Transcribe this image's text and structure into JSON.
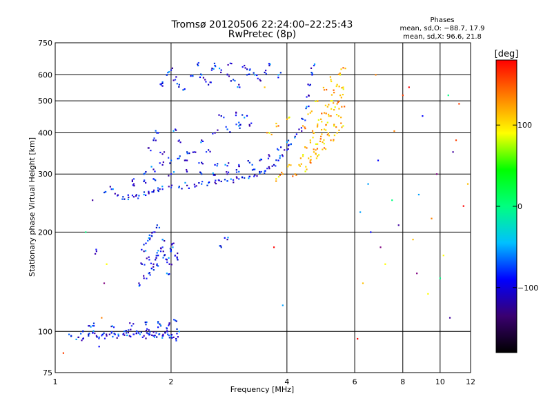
{
  "chart_data": {
    "type": "scatter",
    "title": "Tromsø 20120506 22:24:00–22:25:43",
    "subtitle": "RwPretec (8p)",
    "xlabel": "Frequency [MHz]",
    "ylabel": "Stationary phase Virtual Height [km]",
    "x_scale": "log",
    "y_scale": "log",
    "xlim": [
      1,
      12
    ],
    "ylim": [
      75,
      750
    ],
    "x_ticks": [
      "1",
      "2",
      "4",
      "6",
      "8",
      "10",
      "12"
    ],
    "y_ticks": [
      "75",
      "100",
      "200",
      "300",
      "400",
      "500",
      "600",
      "750"
    ],
    "grid": true,
    "stats": {
      "heading": "Phases",
      "o_line": "mean, sd,O: −88.7, 17.9",
      "x_line": "mean, sd,X: 96.6, 21.8"
    },
    "colorbar": {
      "label": "[deg]",
      "range": [
        -180,
        180
      ],
      "ticks": [
        "100",
        "0",
        "−100"
      ],
      "tick_values": [
        100,
        0,
        -100
      ],
      "colormap": [
        "#000000",
        "#3a0070",
        "#0000ff",
        "#00c0ff",
        "#00ff80",
        "#00ff00",
        "#ffff00",
        "#ff8000",
        "#ff0000"
      ]
    },
    "series": [
      {
        "points": [
          [
            1.1,
            97
          ],
          [
            1.15,
            96
          ],
          [
            1.18,
            95
          ],
          [
            1.22,
            97
          ],
          [
            1.25,
            99
          ],
          [
            1.28,
            97
          ],
          [
            1.3,
            96
          ],
          [
            1.33,
            98
          ],
          [
            1.36,
            97
          ],
          [
            1.4,
            99
          ],
          [
            1.43,
            98
          ],
          [
            1.46,
            97
          ],
          [
            1.5,
            98
          ],
          [
            1.53,
            99
          ],
          [
            1.56,
            97
          ],
          [
            1.6,
            98
          ],
          [
            1.63,
            100
          ],
          [
            1.66,
            98
          ],
          [
            1.7,
            97
          ],
          [
            1.73,
            99
          ],
          [
            1.76,
            98
          ],
          [
            1.8,
            97
          ],
          [
            1.83,
            99
          ],
          [
            1.86,
            98
          ],
          [
            1.9,
            97
          ],
          [
            1.93,
            99
          ],
          [
            1.96,
            98
          ],
          [
            2.0,
            97
          ],
          [
            2.03,
            96
          ],
          [
            2.06,
            95
          ],
          [
            1.26,
            104
          ],
          [
            1.42,
            103
          ],
          [
            1.58,
            104
          ],
          [
            1.72,
            105
          ],
          [
            1.88,
            104
          ],
          [
            1.98,
            106
          ],
          [
            2.05,
            108
          ],
          [
            2.1,
            100
          ],
          [
            1.75,
            101
          ],
          [
            1.95,
            102
          ],
          [
            1.18,
            100
          ],
          [
            1.22,
            104
          ],
          [
            1.55,
            101
          ],
          [
            1.85,
            107
          ],
          [
            1.65,
            140
          ],
          [
            1.7,
            145
          ],
          [
            1.75,
            150
          ],
          [
            1.78,
            155
          ],
          [
            1.8,
            160
          ],
          [
            1.82,
            165
          ],
          [
            1.85,
            170
          ],
          [
            1.88,
            175
          ],
          [
            1.9,
            180
          ],
          [
            1.92,
            170
          ],
          [
            1.95,
            165
          ],
          [
            1.98,
            160
          ],
          [
            2.0,
            175
          ],
          [
            2.02,
            180
          ],
          [
            2.05,
            170
          ],
          [
            2.08,
            165
          ],
          [
            1.72,
            185
          ],
          [
            1.76,
            190
          ],
          [
            1.8,
            200
          ],
          [
            1.84,
            210
          ],
          [
            1.7,
            175
          ],
          [
            1.75,
            168
          ],
          [
            1.85,
            158
          ],
          [
            1.95,
            150
          ],
          [
            2.03,
            185
          ],
          [
            1.68,
            160
          ],
          [
            1.78,
            195
          ],
          [
            1.9,
            190
          ],
          [
            1.45,
            258
          ],
          [
            1.5,
            256
          ],
          [
            1.55,
            255
          ],
          [
            1.6,
            256
          ],
          [
            1.65,
            258
          ],
          [
            1.7,
            260
          ],
          [
            1.75,
            262
          ],
          [
            1.8,
            265
          ],
          [
            1.85,
            268
          ],
          [
            1.9,
            270
          ],
          [
            2.0,
            273
          ],
          [
            2.1,
            275
          ],
          [
            2.2,
            277
          ],
          [
            2.3,
            279
          ],
          [
            2.4,
            280
          ],
          [
            2.5,
            282
          ],
          [
            2.6,
            283
          ],
          [
            2.7,
            285
          ],
          [
            2.8,
            286
          ],
          [
            2.9,
            288
          ],
          [
            3.0,
            290
          ],
          [
            3.1,
            292
          ],
          [
            3.2,
            295
          ],
          [
            3.3,
            298
          ],
          [
            3.4,
            302
          ],
          [
            3.5,
            306
          ],
          [
            3.6,
            312
          ],
          [
            3.7,
            320
          ],
          [
            3.8,
            330
          ],
          [
            3.9,
            340
          ],
          [
            4.0,
            355
          ],
          [
            4.1,
            370
          ],
          [
            4.2,
            390
          ],
          [
            4.3,
            410
          ],
          [
            4.4,
            440
          ],
          [
            4.5,
            480
          ],
          [
            4.55,
            520
          ],
          [
            4.6,
            560
          ],
          [
            4.65,
            600
          ],
          [
            4.7,
            640
          ],
          [
            1.6,
            290
          ],
          [
            1.7,
            300
          ],
          [
            1.8,
            310
          ],
          [
            1.9,
            320
          ],
          [
            2.0,
            330
          ],
          [
            2.1,
            335
          ],
          [
            2.2,
            330
          ],
          [
            2.4,
            325
          ],
          [
            2.6,
            320
          ],
          [
            2.8,
            318
          ],
          [
            3.0,
            320
          ],
          [
            3.2,
            325
          ],
          [
            3.4,
            330
          ],
          [
            3.6,
            340
          ],
          [
            3.8,
            355
          ],
          [
            4.0,
            375
          ],
          [
            1.6,
            280
          ],
          [
            1.7,
            285
          ],
          [
            1.8,
            290
          ],
          [
            2.0,
            300
          ],
          [
            2.2,
            305
          ],
          [
            2.4,
            300
          ],
          [
            2.6,
            298
          ],
          [
            2.8,
            300
          ],
          [
            3.0,
            305
          ],
          [
            3.3,
            310
          ],
          [
            1.75,
            360
          ],
          [
            1.8,
            380
          ],
          [
            1.85,
            400
          ],
          [
            2.05,
            410
          ],
          [
            2.1,
            380
          ],
          [
            2.2,
            350
          ],
          [
            2.4,
            380
          ],
          [
            2.6,
            400
          ],
          [
            2.8,
            410
          ],
          [
            3.0,
            420
          ],
          [
            1.9,
            345
          ],
          [
            2.5,
            355
          ],
          [
            1.95,
            600
          ],
          [
            2.0,
            620
          ],
          [
            2.05,
            580
          ],
          [
            2.1,
            560
          ],
          [
            2.15,
            540
          ],
          [
            1.9,
            555
          ],
          [
            2.35,
            640
          ],
          [
            2.4,
            600
          ],
          [
            2.45,
            580
          ],
          [
            2.5,
            560
          ],
          [
            2.6,
            640
          ],
          [
            2.7,
            620
          ],
          [
            2.8,
            600
          ],
          [
            2.9,
            580
          ],
          [
            3.0,
            560
          ],
          [
            3.1,
            640
          ],
          [
            3.2,
            620
          ],
          [
            3.3,
            600
          ],
          [
            3.4,
            580
          ],
          [
            3.5,
            610
          ],
          [
            2.25,
            595
          ],
          [
            2.55,
            620
          ],
          [
            2.85,
            650
          ],
          [
            3.15,
            600
          ],
          [
            3.6,
            640
          ],
          [
            2.95,
            460
          ],
          [
            3.0,
            430
          ],
          [
            3.1,
            445
          ],
          [
            3.2,
            420
          ],
          [
            2.7,
            450
          ],
          [
            1.35,
            265
          ],
          [
            1.4,
            270
          ],
          [
            2.3,
            350
          ],
          [
            2.7,
            180
          ],
          [
            2.8,
            190
          ],
          [
            1.28,
            175
          ],
          [
            1.9,
            570
          ],
          [
            3.8,
            600
          ]
        ],
        "colors": "blue-purple"
      },
      {
        "points": [
          [
            4.2,
            300
          ],
          [
            4.3,
            320
          ],
          [
            4.4,
            340
          ],
          [
            4.5,
            360
          ],
          [
            4.6,
            380
          ],
          [
            4.7,
            400
          ],
          [
            4.8,
            420
          ],
          [
            4.9,
            440
          ],
          [
            5.0,
            460
          ],
          [
            5.1,
            480
          ],
          [
            5.2,
            500
          ],
          [
            5.3,
            530
          ],
          [
            5.4,
            560
          ],
          [
            5.5,
            600
          ],
          [
            5.6,
            630
          ],
          [
            4.5,
            310
          ],
          [
            4.6,
            330
          ],
          [
            4.7,
            350
          ],
          [
            4.8,
            370
          ],
          [
            4.9,
            390
          ],
          [
            5.0,
            410
          ],
          [
            5.1,
            430
          ],
          [
            5.2,
            450
          ],
          [
            5.3,
            470
          ],
          [
            5.4,
            490
          ],
          [
            5.5,
            520
          ],
          [
            5.6,
            550
          ],
          [
            5.2,
            380
          ],
          [
            5.4,
            400
          ],
          [
            5.6,
            420
          ],
          [
            5.0,
            360
          ],
          [
            4.8,
            340
          ],
          [
            4.4,
            420
          ],
          [
            4.6,
            460
          ],
          [
            4.8,
            500
          ],
          [
            5.0,
            540
          ],
          [
            5.2,
            580
          ],
          [
            3.6,
            400
          ],
          [
            3.8,
            420
          ],
          [
            4.0,
            440
          ],
          [
            3.9,
            300
          ],
          [
            4.05,
            320
          ],
          [
            3.75,
            290
          ],
          [
            5.55,
            480
          ],
          [
            5.45,
            450
          ],
          [
            5.3,
            420
          ],
          [
            5.1,
            395
          ],
          [
            4.95,
            375
          ],
          [
            4.75,
            355
          ],
          [
            4.55,
            335
          ]
        ],
        "colors": "yellow-orange"
      },
      {
        "points": [
          [
            6.1,
            95
          ],
          [
            6.3,
            140
          ],
          [
            6.5,
            280
          ],
          [
            6.6,
            200
          ],
          [
            6.8,
            600
          ],
          [
            7.0,
            180
          ],
          [
            7.2,
            160
          ],
          [
            7.5,
            250
          ],
          [
            7.8,
            210
          ],
          [
            8.0,
            520
          ],
          [
            8.3,
            550
          ],
          [
            8.5,
            190
          ],
          [
            8.8,
            260
          ],
          [
            9.0,
            450
          ],
          [
            9.5,
            220
          ],
          [
            9.8,
            300
          ],
          [
            10.2,
            170
          ],
          [
            10.5,
            520
          ],
          [
            10.8,
            350
          ],
          [
            11.2,
            490
          ],
          [
            11.5,
            240
          ],
          [
            11.8,
            280
          ],
          [
            6.2,
            230
          ],
          [
            6.9,
            330
          ],
          [
            7.6,
            405
          ],
          [
            8.7,
            150
          ],
          [
            9.3,
            130
          ],
          [
            10.0,
            145
          ],
          [
            10.6,
            110
          ],
          [
            11.0,
            380
          ],
          [
            3.7,
            180
          ],
          [
            3.5,
            550
          ],
          [
            3.9,
            120
          ],
          [
            1.3,
            90
          ],
          [
            1.32,
            110
          ],
          [
            1.34,
            140
          ],
          [
            1.36,
            160
          ],
          [
            1.2,
            200
          ],
          [
            1.25,
            250
          ],
          [
            1.05,
            86
          ]
        ],
        "colors": "scatter"
      }
    ]
  }
}
